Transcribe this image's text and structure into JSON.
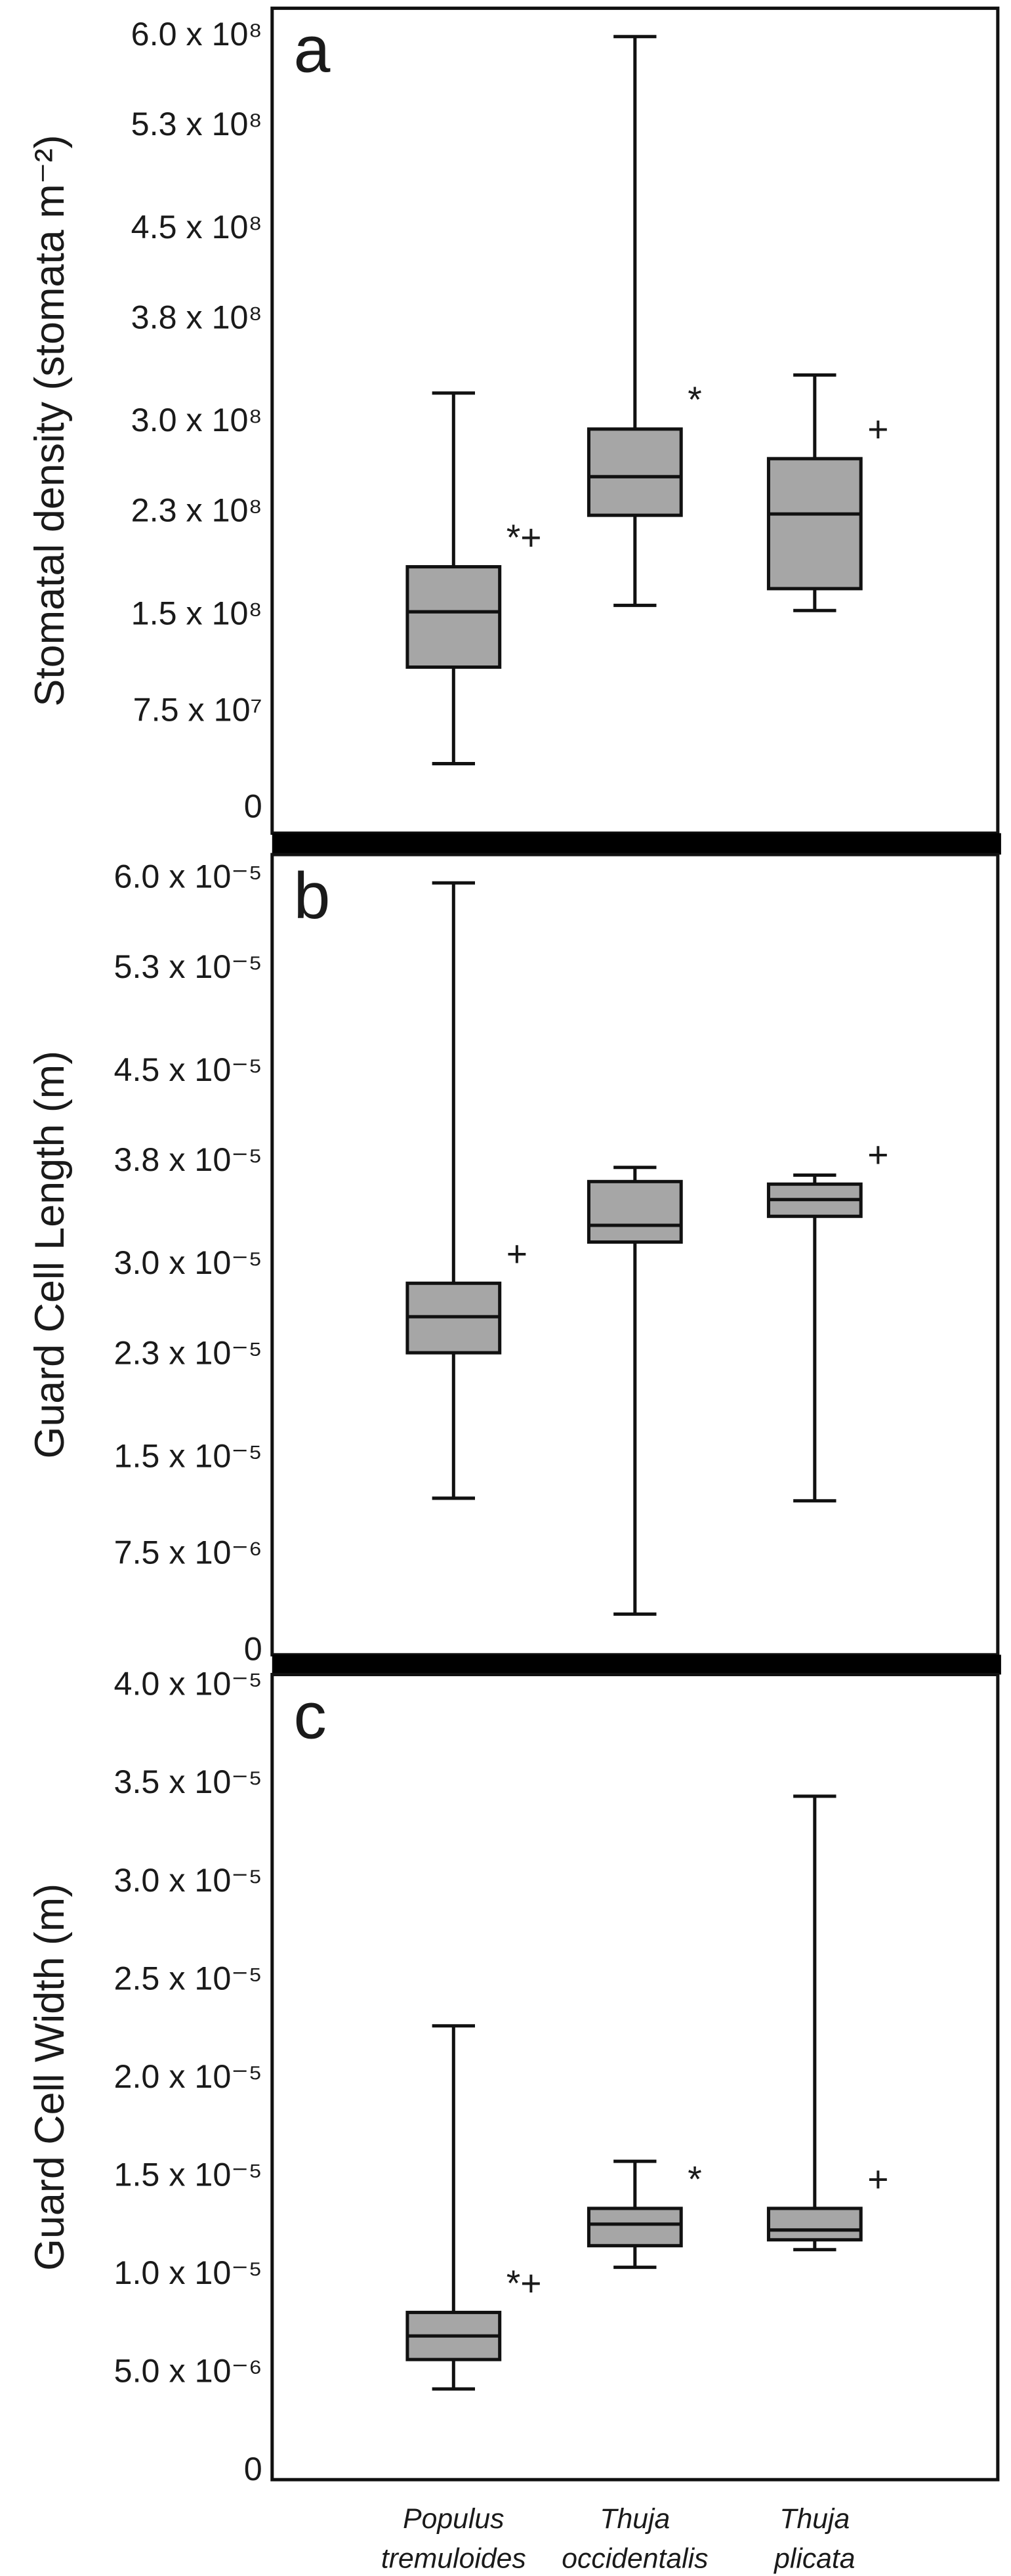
{
  "chart_data": [
    {
      "type": "box",
      "panel_label": "a",
      "ylabel": "Stomatal density (stomata m⁻²)",
      "ylim": [
        -19000000,
        622000000
      ],
      "yticks": [
        0,
        {
          "value": 75000000,
          "label": "7.5 x 10⁷"
        },
        {
          "value": 150000000,
          "label": "1.5 x 10⁸"
        },
        {
          "value": 230000000,
          "label": "2.3 x 10⁸"
        },
        {
          "value": 300000000,
          "label": "3.0 x 10⁸"
        },
        {
          "value": 380000000,
          "label": "3.8 x 10⁸"
        },
        {
          "value": 450000000,
          "label": "4.5 x 10⁸"
        },
        {
          "value": 530000000,
          "label": "5.3 x 10⁸"
        },
        {
          "value": 600000000,
          "label": "6.0 x 10⁸"
        }
      ],
      "color": "#a6a6a6",
      "boxes": [
        {
          "min": 35000000,
          "q1": 110000000,
          "median": 153000000,
          "q3": 188000000,
          "max": 323000000
        },
        {
          "min": 158000000,
          "q1": 228000000,
          "median": 258000000,
          "q3": 295000000,
          "max": 600000000
        },
        {
          "min": 154000000,
          "q1": 171000000,
          "median": 229000000,
          "q3": 272000000,
          "max": 337000000
        }
      ],
      "box_annotations": [
        "*+",
        "*",
        "+"
      ]
    },
    {
      "type": "box",
      "panel_label": "b",
      "ylabel": "Guard Cell Length (m)",
      "ylim": [
        -2.6e-07,
        6.19e-05
      ],
      "yticks": [
        0,
        {
          "value": 7.5e-06,
          "label": "7.5 x 10⁻⁶"
        },
        {
          "value": 1.5e-05,
          "label": "1.5 x 10⁻⁵"
        },
        {
          "value": 2.3e-05,
          "label": "2.3 x 10⁻⁵"
        },
        {
          "value": 3e-05,
          "label": "3.0 x 10⁻⁵"
        },
        {
          "value": 3.8e-05,
          "label": "3.8 x 10⁻⁵"
        },
        {
          "value": 4.5e-05,
          "label": "4.5 x 10⁻⁵"
        },
        {
          "value": 5.3e-05,
          "label": "5.3 x 10⁻⁵"
        },
        {
          "value": 6e-05,
          "label": "6.0 x 10⁻⁵"
        }
      ],
      "color": "#a6a6a6",
      "boxes": [
        {
          "min": 1.19e-05,
          "q1": 2.32e-05,
          "median": 2.6e-05,
          "q3": 2.86e-05,
          "max": 5.97e-05
        },
        {
          "min": 2.9e-06,
          "q1": 3.18e-05,
          "median": 3.31e-05,
          "q3": 3.65e-05,
          "max": 3.76e-05
        },
        {
          "min": 1.17e-05,
          "q1": 3.38e-05,
          "median": 3.51e-05,
          "q3": 3.63e-05,
          "max": 3.7e-05
        }
      ],
      "box_annotations": [
        "+",
        null,
        "+"
      ]
    },
    {
      "type": "box",
      "panel_label": "c",
      "ylabel": "Guard Cell Width (m)",
      "ylim": [
        -4.2e-07,
        4.06e-05
      ],
      "yticks": [
        0,
        {
          "value": 5e-06,
          "label": "5.0 x 10⁻⁶"
        },
        {
          "value": 1e-05,
          "label": "1.0 x 10⁻⁵"
        },
        {
          "value": 1.5e-05,
          "label": "1.5 x 10⁻⁵"
        },
        {
          "value": 2e-05,
          "label": "2.0 x 10⁻⁵"
        },
        {
          "value": 2.5e-05,
          "label": "2.5 x 10⁻⁵"
        },
        {
          "value": 3e-05,
          "label": "3.0 x 10⁻⁵"
        },
        {
          "value": 3.5e-05,
          "label": "3.5 x 10⁻⁵"
        },
        {
          "value": 4e-05,
          "label": "4.0 x 10⁻⁵"
        }
      ],
      "color": "#a6a6a6",
      "categories": [
        "Populus tremuloides",
        "Thuja occidentalis",
        "Thuja plicata"
      ],
      "boxes": [
        {
          "min": 4.2e-06,
          "q1": 5.7e-06,
          "median": 6.9e-06,
          "q3": 8.1e-06,
          "max": 2.27e-05
        },
        {
          "min": 1.04e-05,
          "q1": 1.15e-05,
          "median": 1.26e-05,
          "q3": 1.34e-05,
          "max": 1.58e-05
        },
        {
          "min": 1.13e-05,
          "q1": 1.18e-05,
          "median": 1.23e-05,
          "q3": 1.34e-05,
          "max": 3.44e-05
        }
      ],
      "box_annotations": [
        "*+",
        "*",
        "+"
      ]
    }
  ]
}
